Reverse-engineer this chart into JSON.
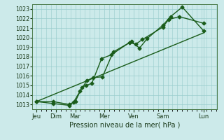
{
  "xlabel": "Pression niveau de la mer( hPa )",
  "bg_color": "#cceaea",
  "grid_color": "#99cccc",
  "line_color": "#1a5c1a",
  "xlim": [
    0,
    9.5
  ],
  "ylim": [
    1012.5,
    1023.5
  ],
  "yticks": [
    1013,
    1014,
    1015,
    1016,
    1017,
    1018,
    1019,
    1020,
    1021,
    1022,
    1023
  ],
  "xtick_labels": [
    "Jeu",
    "Dim",
    "Mar",
    "Mer",
    "Ven",
    "Sam",
    "Lun"
  ],
  "xtick_positions": [
    0.2,
    1.2,
    2.2,
    3.7,
    5.2,
    6.7,
    8.8
  ],
  "line1_x": [
    0.2,
    1.05,
    1.9,
    2.2,
    2.55,
    2.75,
    3.05,
    3.55,
    4.05,
    5.0,
    5.3,
    5.65,
    6.7,
    7.0,
    7.55,
    8.8
  ],
  "line1_y": [
    1013.3,
    1013.3,
    1013.0,
    1013.3,
    1014.8,
    1015.0,
    1015.2,
    1017.8,
    1018.2,
    1019.5,
    1019.3,
    1019.8,
    1021.1,
    1021.9,
    1022.2,
    1021.5
  ],
  "line2_x": [
    0.2,
    1.05,
    1.9,
    2.1,
    2.45,
    2.8,
    3.1,
    3.6,
    4.15,
    5.1,
    5.5,
    5.9,
    6.7,
    7.1,
    7.7,
    8.8
  ],
  "line2_y": [
    1013.3,
    1013.1,
    1012.9,
    1013.2,
    1014.4,
    1015.5,
    1015.8,
    1015.9,
    1018.5,
    1019.6,
    1018.9,
    1019.9,
    1021.3,
    1022.2,
    1023.2,
    1020.7
  ],
  "line3_x": [
    0.2,
    8.8
  ],
  "line3_y": [
    1013.3,
    1020.5
  ],
  "marker_size": 2.5,
  "linewidth": 1.0,
  "ylabel_fontsize": 5.8,
  "xlabel_fontsize": 7.0,
  "xtick_fontsize": 6.0
}
